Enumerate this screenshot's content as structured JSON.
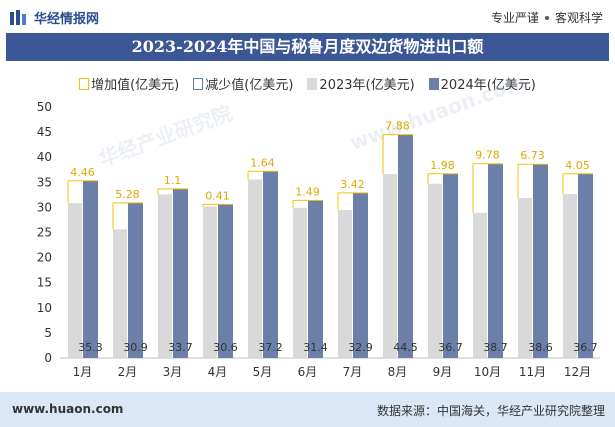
{
  "header": {
    "brand": "华经情报网",
    "slogan_left": "专业严谨",
    "slogan_right": "客观科学"
  },
  "chart_data": {
    "type": "bar",
    "title": "2023-2024年中国与秘鲁月度双边货物进出口额",
    "legend": [
      "增加值(亿美元)",
      "减少值(亿美元)",
      "2023年(亿美元)",
      "2024年(亿美元)"
    ],
    "categories": [
      "1月",
      "2月",
      "3月",
      "4月",
      "5月",
      "6月",
      "7月",
      "8月",
      "9月",
      "10月",
      "11月",
      "12月"
    ],
    "series": [
      {
        "name": "2023年(亿美元)",
        "values": [
          30.84,
          25.62,
          32.6,
          30.19,
          35.56,
          29.91,
          29.48,
          36.62,
          34.72,
          28.92,
          31.87,
          32.65
        ]
      },
      {
        "name": "2024年(亿美元)",
        "values": [
          35.3,
          30.9,
          33.7,
          30.6,
          37.2,
          31.4,
          32.9,
          44.5,
          36.7,
          38.7,
          38.6,
          36.7
        ]
      }
    ],
    "increase_labels": [
      "4.46",
      "5.28",
      "1.1",
      "0.41",
      "1.64",
      "1.49",
      "3.42",
      "7.88",
      "1.98",
      "9.78",
      "6.73",
      "4.05"
    ],
    "value_labels_2024": [
      "35.3",
      "30.9",
      "33.7",
      "30.6",
      "37.2",
      "31.4",
      "32.9",
      "44.5",
      "36.7",
      "38.7",
      "38.6",
      "36.7"
    ],
    "y_ticks": [
      "0",
      "5",
      "10",
      "15",
      "20",
      "25",
      "30",
      "35",
      "40",
      "45",
      "50"
    ],
    "ylim": [
      0,
      50
    ],
    "colors": {
      "y2023": "#d9d9d9",
      "y2024": "#6b7fa8",
      "increase": "#f4c200",
      "decrease": "#5b7db5"
    }
  },
  "watermark": {
    "text": "华经产业研究院",
    "url": "www.huaon.com"
  },
  "footer": {
    "url": "www.huaon.com",
    "source": "数据来源：中国海关，华经产业研究院整理"
  }
}
